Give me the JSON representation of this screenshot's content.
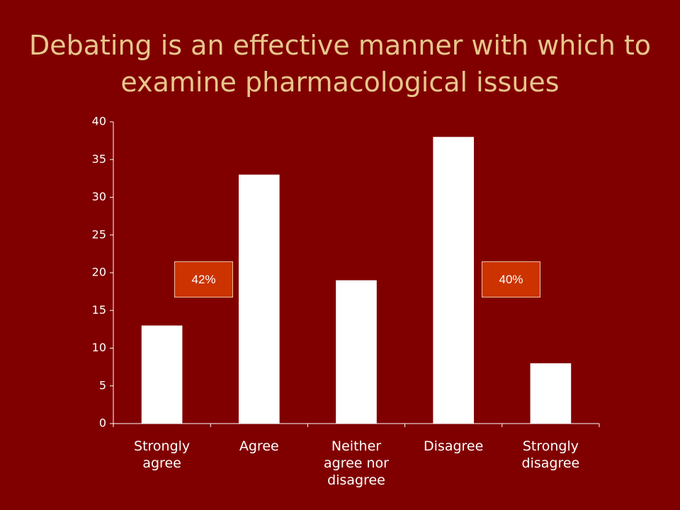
{
  "chart_data": {
    "type": "bar",
    "title": "Debating is an effective manner with which to examine pharmacological issues",
    "categories": [
      "Strongly agree",
      "Agree",
      "Neither agree nor disagree",
      "Disagree",
      "Strongly disagree"
    ],
    "values": [
      13,
      33,
      19,
      38,
      8
    ],
    "color": "#ffffff",
    "ylim": [
      0,
      40
    ],
    "yticks": [
      0,
      5,
      10,
      15,
      20,
      25,
      30,
      35,
      40
    ],
    "annotations": [
      "42%",
      "40%"
    ]
  }
}
